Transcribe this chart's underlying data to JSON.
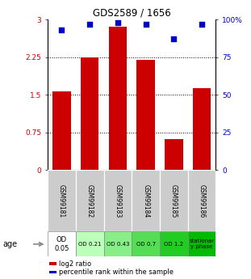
{
  "title": "GDS2589 / 1656",
  "samples": [
    "GSM99181",
    "GSM99182",
    "GSM99183",
    "GSM99184",
    "GSM99185",
    "GSM99186"
  ],
  "log2_ratio": [
    1.57,
    2.25,
    2.85,
    2.2,
    0.62,
    1.63
  ],
  "percentile_rank": [
    93,
    97,
    98,
    97,
    87,
    97
  ],
  "ylim_left": [
    0,
    3
  ],
  "ylim_right": [
    0,
    100
  ],
  "yticks_left": [
    0,
    0.75,
    1.5,
    2.25,
    3
  ],
  "yticks_right": [
    0,
    25,
    50,
    75,
    100
  ],
  "bar_color": "#cc0000",
  "dot_color": "#0000cc",
  "age_labels": [
    "OD\n0.05",
    "OD 0.21",
    "OD 0.43",
    "OD 0.7",
    "OD 1.2",
    "stationar\ny phase"
  ],
  "age_bg_colors": [
    "#ffffff",
    "#bbffbb",
    "#88ee88",
    "#55dd55",
    "#22cc22",
    "#00bb00"
  ],
  "sample_bg_color": "#cccccc",
  "grid_values": [
    0.75,
    1.5,
    2.25
  ],
  "legend_red_label": "log2 ratio",
  "legend_blue_label": "percentile rank within the sample"
}
